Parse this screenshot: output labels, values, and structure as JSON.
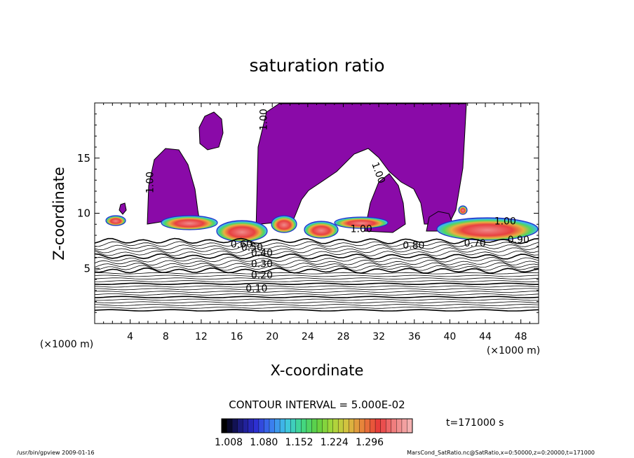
{
  "chart_data": {
    "type": "heatmap",
    "title": "saturation ratio",
    "xlabel": "X-coordinate",
    "ylabel": "Z-coordinate",
    "x_unit_label": "(×1000 m)",
    "y_unit_label": "(×1000 m)",
    "xlim": [
      0,
      50
    ],
    "ylim": [
      0,
      20
    ],
    "x_ticks": [
      4,
      8,
      12,
      16,
      20,
      24,
      28,
      32,
      36,
      40,
      44,
      48
    ],
    "y_ticks": [
      5,
      10,
      15
    ],
    "grid": false,
    "contour_interval_text": "CONTOUR INTERVAL = 5.000E-02",
    "time_label": "t=171000 s",
    "colorbar": {
      "tick_labels": [
        "1.008",
        "1.080",
        "1.152",
        "1.224",
        "1.296"
      ],
      "colors": [
        "#000000",
        "#1a1a7a",
        "#2c2cd0",
        "#3b78f0",
        "#3fc6e6",
        "#40d88a",
        "#5fd040",
        "#a7d83a",
        "#d8c040",
        "#e8803a",
        "#e83a3a",
        "#f08080",
        "#f4b0b0"
      ]
    },
    "contour_labels": [
      {
        "text": "1.00",
        "x": 19.4,
        "z": 17.5,
        "rotate": -90
      },
      {
        "text": "1.00",
        "x": 6.6,
        "z": 11.8,
        "rotate": -90
      },
      {
        "text": "1.00",
        "x": 31.2,
        "z": 14.5,
        "rotate": 70
      },
      {
        "text": "1.00",
        "x": 45.0,
        "z": 9.0,
        "rotate": 0
      },
      {
        "text": "0.90",
        "x": 46.5,
        "z": 7.3,
        "rotate": 0
      },
      {
        "text": "0.80",
        "x": 34.7,
        "z": 6.8,
        "rotate": 0
      },
      {
        "text": "0.70",
        "x": 41.6,
        "z": 7.0,
        "rotate": 0
      },
      {
        "text": "0.60",
        "x": 15.3,
        "z": 6.9,
        "rotate": 0
      },
      {
        "text": "0.50",
        "x": 16.5,
        "z": 6.6,
        "rotate": 0
      },
      {
        "text": "0.40",
        "x": 17.6,
        "z": 6.1,
        "rotate": 0
      },
      {
        "text": "0.30",
        "x": 17.6,
        "z": 5.1,
        "rotate": 0
      },
      {
        "text": "0.20",
        "x": 17.6,
        "z": 4.1,
        "rotate": 0
      },
      {
        "text": "0.10",
        "x": 17.0,
        "z": 2.9,
        "rotate": 0
      },
      {
        "text": "1.00",
        "x": 28.8,
        "z": 8.3,
        "rotate": 0
      }
    ],
    "colors": {
      "saturated_region": "#8a0aa8",
      "contour": "#000000",
      "frame": "#000000"
    }
  },
  "footer": {
    "left": "/usr/bin/gpview   2009-01-16",
    "right": "MarsCond_SatRatio.nc@SatRatio,x=0:50000,z=0:20000,t=171000"
  }
}
